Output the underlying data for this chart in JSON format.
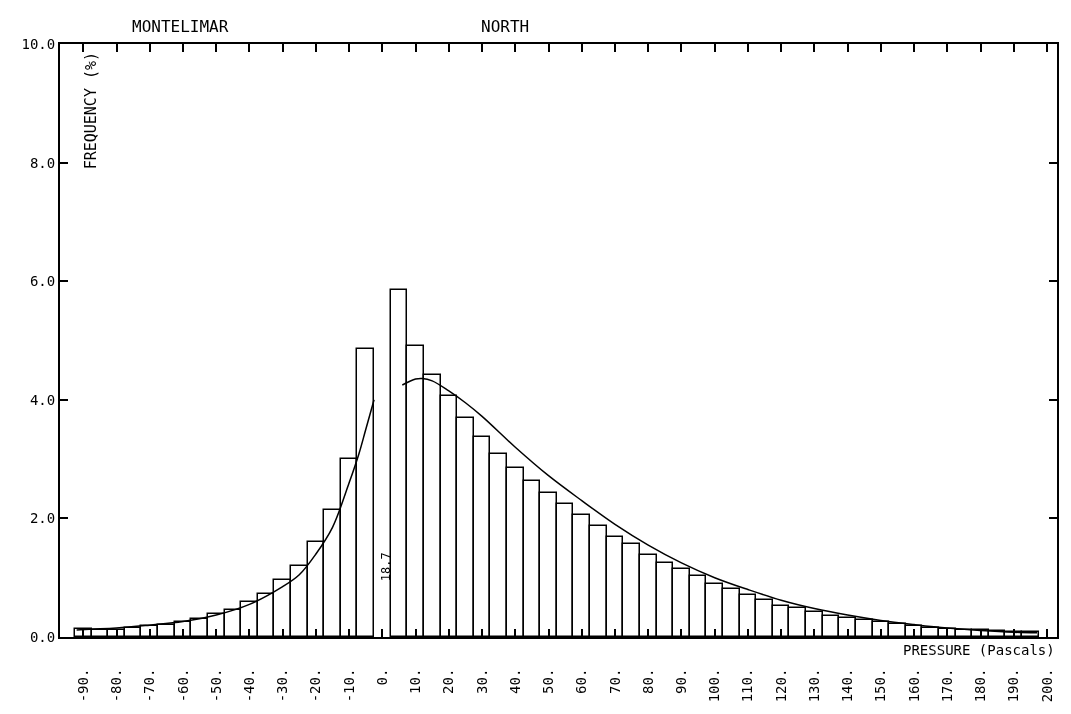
{
  "chart_data": {
    "type": "histogram",
    "title": "MONTELIMAR",
    "subtitle": "NORTH",
    "xlabel": "PRESSURE (Pascals)",
    "ylabel": "FREQUENCY (%)",
    "xlim": [
      -97,
      203
    ],
    "ylim": [
      0,
      10
    ],
    "xticks": [
      {
        "value": -90,
        "label": "-90."
      },
      {
        "value": -80,
        "label": "-80."
      },
      {
        "value": -70,
        "label": "-70."
      },
      {
        "value": -60,
        "label": "-60."
      },
      {
        "value": -50,
        "label": "-50."
      },
      {
        "value": -40,
        "label": "-40."
      },
      {
        "value": -30,
        "label": "-30."
      },
      {
        "value": -20,
        "label": "-20."
      },
      {
        "value": -10,
        "label": "-10."
      },
      {
        "value": 0,
        "label": "0."
      },
      {
        "value": 10,
        "label": "10."
      },
      {
        "value": 20,
        "label": "20."
      },
      {
        "value": 30,
        "label": "30."
      },
      {
        "value": 40,
        "label": "40."
      },
      {
        "value": 50,
        "label": "50."
      },
      {
        "value": 60,
        "label": "60."
      },
      {
        "value": 70,
        "label": "70."
      },
      {
        "value": 80,
        "label": "80."
      },
      {
        "value": 90,
        "label": "90."
      },
      {
        "value": 100,
        "label": "100."
      },
      {
        "value": 110,
        "label": "110."
      },
      {
        "value": 120,
        "label": "120."
      },
      {
        "value": 130,
        "label": "130."
      },
      {
        "value": 140,
        "label": "140."
      },
      {
        "value": 150,
        "label": "150."
      },
      {
        "value": 160,
        "label": "160."
      },
      {
        "value": 170,
        "label": "170."
      },
      {
        "value": 180,
        "label": "180."
      },
      {
        "value": 190,
        "label": "190."
      },
      {
        "value": 200,
        "label": "200."
      }
    ],
    "yticks": [
      {
        "value": 0,
        "label": "0.0"
      },
      {
        "value": 2,
        "label": "2.0"
      },
      {
        "value": 4,
        "label": "4.0"
      },
      {
        "value": 6,
        "label": "6.0"
      },
      {
        "value": 8,
        "label": "8.0"
      },
      {
        "value": 10,
        "label": "10.0"
      }
    ],
    "annotations": [
      "18.7"
    ],
    "series": [
      {
        "color": "#000000",
        "bins": [
          -92.5,
          -87.5,
          -82.5,
          -77.5,
          -72.5,
          -67.5,
          -62.5,
          -57.5,
          -52.5,
          -47.5,
          -42.5,
          -37.5,
          -32.5,
          -27.5,
          -22.5,
          -17.5,
          -12.5,
          -7.5,
          -2.5,
          2.5,
          7.5,
          12.5,
          17.5,
          22.5,
          27.5,
          32.5,
          37.5,
          42.5,
          47.5,
          52.5,
          57.5,
          62.5,
          67.5,
          72.5,
          77.5,
          82.5,
          87.5,
          92.5,
          97.5,
          102.5,
          107.5,
          112.5,
          117.5,
          122.5,
          127.5,
          132.5,
          137.5,
          142.5,
          147.5,
          152.5,
          157.5,
          162.5,
          167.5,
          172.5,
          177.5,
          182.5,
          187.5,
          192.5,
          197.5
        ],
        "values": [
          0.14,
          0.11,
          0.12,
          0.15,
          0.18,
          0.2,
          0.25,
          0.3,
          0.39,
          0.46,
          0.59,
          0.73,
          0.96,
          1.2,
          1.6,
          2.15,
          3.0,
          4.85,
          null,
          5.85,
          4.9,
          4.42,
          4.06,
          3.7,
          3.37,
          3.08,
          2.85,
          2.63,
          2.42,
          2.24,
          2.05,
          1.87,
          1.68,
          1.57,
          1.39,
          1.24,
          1.15,
          1.03,
          0.9,
          0.81,
          0.71,
          0.63,
          0.53,
          0.49,
          0.42,
          0.35,
          0.32,
          0.28,
          0.26,
          0.22,
          0.18,
          0.16,
          0.14,
          0.12,
          0.11,
          0.1,
          0.09,
          0.08
        ]
      },
      {
        "type": "line",
        "color": "#000000",
        "x": [
          -92,
          -80,
          -70,
          -60,
          -50,
          -40,
          -30,
          -25,
          -20,
          -15,
          -10,
          -7,
          -5,
          -2.5
        ],
        "values": [
          0.12,
          0.15,
          0.2,
          0.26,
          0.37,
          0.55,
          0.85,
          1.05,
          1.4,
          1.85,
          2.6,
          3.1,
          3.5,
          4.0
        ]
      },
      {
        "type": "line",
        "color": "#000000",
        "x": [
          6,
          10,
          12,
          15,
          20,
          25,
          30,
          40,
          50,
          60,
          70,
          80,
          90,
          100,
          110,
          120,
          130,
          140,
          150,
          160,
          170,
          180,
          190,
          197
        ],
        "values": [
          4.25,
          4.35,
          4.36,
          4.32,
          4.15,
          3.95,
          3.72,
          3.2,
          2.72,
          2.3,
          1.9,
          1.55,
          1.25,
          1.0,
          0.8,
          0.62,
          0.48,
          0.37,
          0.28,
          0.21,
          0.15,
          0.11,
          0.08,
          0.07
        ]
      }
    ]
  }
}
